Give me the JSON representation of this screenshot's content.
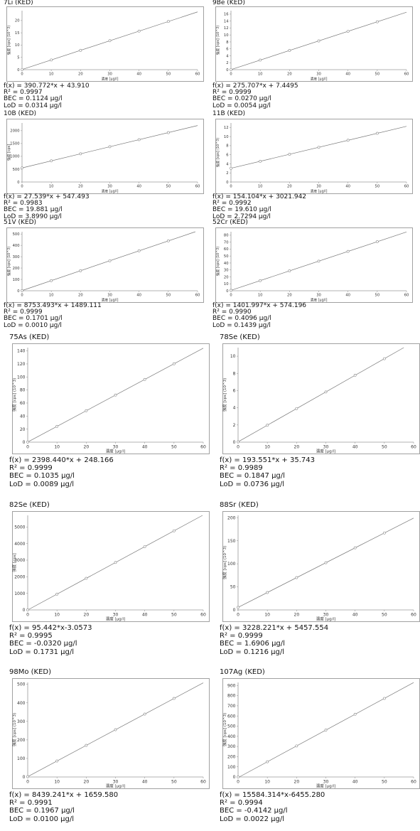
{
  "units": {
    "x_axis": "濃度 [µg/l]",
    "y_cps": "強度 [cps]",
    "y_10e3": "強度 [cps] (10^3)"
  },
  "chart_data": [
    {
      "title": "7Li (KED)",
      "type": "scatter",
      "ylabel": "強度 [cps] (10^3)",
      "xlabel": "濃度 [µg/l]",
      "xlim": [
        0,
        60
      ],
      "xticks": [
        0,
        10,
        20,
        30,
        40,
        50,
        60
      ],
      "ylim": [
        0,
        24
      ],
      "yticks": [
        0,
        5,
        10,
        15,
        20
      ],
      "x": [
        0,
        10,
        20,
        30,
        40,
        50
      ],
      "y": [
        0.04,
        3.95,
        7.86,
        11.77,
        15.68,
        19.58
      ],
      "fit": {
        "slope": 0.390772,
        "intercept": 0.04391
      },
      "stats": [
        "f(x) = 390.772*x + 43.910",
        "R² = 0.9997",
        "BEC = 0.1124 µg/l",
        "LoD = 0.0314 µg/l"
      ]
    },
    {
      "title": "9Be (KED)",
      "type": "scatter",
      "ylabel": "強度 [cps] (10^3)",
      "xlabel": "濃度 [µg/l]",
      "xlim": [
        0,
        60
      ],
      "xticks": [
        0,
        10,
        20,
        30,
        40,
        50,
        60
      ],
      "ylim": [
        0,
        17
      ],
      "yticks": [
        0,
        2,
        4,
        6,
        8,
        10,
        12,
        14,
        16
      ],
      "x": [
        0,
        10,
        20,
        30,
        40,
        50
      ],
      "y": [
        0.007,
        2.76,
        5.52,
        8.28,
        11.04,
        13.79
      ],
      "fit": {
        "slope": 0.275707,
        "intercept": 0.0074495
      },
      "stats": [
        "f(x) = 275.707*x + 7.4495",
        "R² = 0.9999",
        "BEC = 0.0270 µg/l",
        "LoD = 0.0054 µg/l"
      ]
    },
    {
      "title": "10B (KED)",
      "type": "scatter",
      "ylabel": "強度 [cps]",
      "xlabel": "濃度 [µg/l]",
      "xlim": [
        0,
        60
      ],
      "xticks": [
        0,
        10,
        20,
        30,
        40,
        50,
        60
      ],
      "ylim": [
        0,
        2300
      ],
      "yticks": [
        0,
        500,
        1000,
        1500,
        2000
      ],
      "x": [
        0,
        10,
        20,
        30,
        40,
        50
      ],
      "y": [
        547,
        823,
        1098,
        1374,
        1649,
        1924
      ],
      "fit": {
        "slope": 27.539,
        "intercept": 547.493
      },
      "stats": [
        "f(x) = 27.539*x + 547.493",
        "R² = 0.9983",
        "BEC = 19.881 µg/l",
        "LoD = 3.8990 µg/l"
      ]
    },
    {
      "title": "11B (KED)",
      "type": "scatter",
      "ylabel": "強度 [cps] (10^3)",
      "xlabel": "濃度 [µg/l]",
      "xlim": [
        0,
        60
      ],
      "xticks": [
        0,
        10,
        20,
        30,
        40,
        50,
        60
      ],
      "ylim": [
        0,
        13
      ],
      "yticks": [
        0,
        2,
        4,
        6,
        8,
        10,
        12
      ],
      "x": [
        0,
        10,
        20,
        30,
        40,
        50
      ],
      "y": [
        3.02,
        4.56,
        6.1,
        7.64,
        9.19,
        10.73
      ],
      "fit": {
        "slope": 0.154104,
        "intercept": 3.021942
      },
      "stats": [
        "f(x) = 154.104*x + 3021.942",
        "R² = 0.9992",
        "BEC = 19.610 µg/l",
        "LoD = 2.7294 µg/l"
      ]
    },
    {
      "title": "51V (KED)",
      "type": "scatter",
      "ylabel": "強度 [cps] (10^3)",
      "xlabel": "濃度 [µg/l]",
      "xlim": [
        0,
        60
      ],
      "xticks": [
        0,
        10,
        20,
        30,
        40,
        50,
        60
      ],
      "ylim": [
        0,
        520
      ],
      "yticks": [
        0,
        100,
        200,
        300,
        400,
        500
      ],
      "x": [
        0,
        10,
        20,
        30,
        40,
        50
      ],
      "y": [
        1.5,
        89.0,
        176.6,
        264.1,
        351.6,
        439.2
      ],
      "fit": {
        "slope": 8.753493,
        "intercept": 1.489111
      },
      "stats": [
        "f(x) = 8753.493*x + 1489.111",
        "R² = 0.9999",
        "BEC = 0.1701 µg/l",
        "LoD = 0.0010 µg/l"
      ]
    },
    {
      "title": "52Cr (KED)",
      "type": "scatter",
      "ylabel": "強度 [cps] (10^3)",
      "xlabel": "濃度 [µg/l]",
      "xlim": [
        0,
        60
      ],
      "xticks": [
        0,
        10,
        20,
        30,
        40,
        50,
        60
      ],
      "ylim": [
        0,
        85
      ],
      "yticks": [
        0,
        10,
        20,
        30,
        40,
        50,
        60,
        70,
        80
      ],
      "x": [
        0,
        10,
        20,
        30,
        40,
        50
      ],
      "y": [
        0.57,
        14.59,
        28.61,
        42.63,
        56.65,
        70.67
      ],
      "fit": {
        "slope": 1.401997,
        "intercept": 0.574196
      },
      "stats": [
        "f(x) = 1401.997*x + 574.196",
        "R² = 0.9990",
        "BEC = 0.4096 µg/l",
        "LoD = 0.1439 µg/l"
      ]
    },
    {
      "title": "75As (KED)",
      "type": "scatter",
      "ylabel": "強度 [cps] (10^3)",
      "xlabel": "濃度 [µg/l]",
      "xlim": [
        0,
        60
      ],
      "xticks": [
        0,
        10,
        20,
        30,
        40,
        50,
        60
      ],
      "ylim": [
        0,
        145
      ],
      "yticks": [
        0,
        20,
        40,
        60,
        80,
        100,
        120,
        140
      ],
      "x": [
        0,
        10,
        20,
        30,
        40,
        50
      ],
      "y": [
        0.25,
        24.2,
        48.2,
        72.2,
        96.2,
        120.2
      ],
      "fit": {
        "slope": 2.39844,
        "intercept": 0.248166
      },
      "stats": [
        "f(x) = 2398.440*x + 248.166",
        "R² = 0.9999",
        "BEC = 0.1035 µg/l",
        "LoD = 0.0089 µg/l"
      ]
    },
    {
      "title": "78Se (KED)",
      "type": "scatter",
      "ylabel": "強度 [cps] (10^3)",
      "xlabel": "濃度 [µg/l]",
      "xlim": [
        0,
        60
      ],
      "xticks": [
        0,
        10,
        20,
        30,
        40,
        50,
        60
      ],
      "ylim": [
        0,
        11
      ],
      "yticks": [
        0,
        2,
        4,
        6,
        8,
        10
      ],
      "x": [
        0,
        10,
        20,
        30,
        40,
        50
      ],
      "y": [
        0.04,
        1.97,
        3.91,
        5.84,
        7.78,
        9.71
      ],
      "fit": {
        "slope": 0.193551,
        "intercept": 0.035743
      },
      "stats": [
        "f(x) = 193.551*x + 35.743",
        "R² = 0.9989",
        "BEC = 0.1847 µg/l",
        "LoD = 0.0736 µg/l"
      ]
    },
    {
      "title": "82Se (KED)",
      "type": "scatter",
      "ylabel": "強度 [cps]",
      "xlabel": "濃度 [µg/l]",
      "xlim": [
        0,
        60
      ],
      "xticks": [
        0,
        10,
        20,
        30,
        40,
        50,
        60
      ],
      "ylim": [
        0,
        5700
      ],
      "yticks": [
        0,
        1000,
        2000,
        3000,
        4000,
        5000
      ],
      "x": [
        0,
        10,
        20,
        30,
        40,
        50
      ],
      "y": [
        -3,
        951,
        1906,
        2860,
        3815,
        4769
      ],
      "fit": {
        "slope": 95.442,
        "intercept": -3.0573
      },
      "stats": [
        "f(x) = 95.442*x-3.0573",
        "R² = 0.9995",
        "BEC = -0.0320 µg/l",
        "LoD = 0.1731 µg/l"
      ]
    },
    {
      "title": "88Sr (KED)",
      "type": "scatter",
      "ylabel": "強度 [cps] (10^3)",
      "xlabel": "濃度 [µg/l]",
      "xlim": [
        0,
        60
      ],
      "xticks": [
        0,
        10,
        20,
        30,
        40,
        50,
        60
      ],
      "ylim": [
        0,
        205
      ],
      "yticks": [
        0,
        50,
        100,
        150,
        200
      ],
      "x": [
        0,
        10,
        20,
        30,
        40,
        50
      ],
      "y": [
        5.5,
        37.7,
        70.0,
        102.3,
        134.6,
        166.9
      ],
      "fit": {
        "slope": 3.228221,
        "intercept": 5.457554
      },
      "stats": [
        "f(x) = 3228.221*x + 5457.554",
        "R² = 0.9999",
        "BEC = 1.6906 µg/l",
        "LoD = 0.1216 µg/l"
      ]
    },
    {
      "title": "98Mo (KED)",
      "type": "scatter",
      "ylabel": "強度 [cps] (10^3)",
      "xlabel": "濃度 [µg/l]",
      "xlim": [
        0,
        60
      ],
      "xticks": [
        0,
        10,
        20,
        30,
        40,
        50,
        60
      ],
      "ylim": [
        0,
        510
      ],
      "yticks": [
        0,
        100,
        200,
        300,
        400,
        500
      ],
      "x": [
        0,
        10,
        20,
        30,
        40,
        50
      ],
      "y": [
        1.7,
        86.1,
        170.4,
        254.8,
        339.2,
        423.6
      ],
      "fit": {
        "slope": 8.439241,
        "intercept": 1.65958
      },
      "stats": [
        "f(x) = 8439.241*x + 1659.580",
        "R² = 0.9991",
        "BEC = 0.1967 µg/l",
        "LoD = 0.0100 µg/l"
      ]
    },
    {
      "title": "107Ag (KED)",
      "type": "scatter",
      "ylabel": "強度 [cps] (10^3)",
      "xlabel": "濃度 [µg/l]",
      "xlim": [
        0,
        60
      ],
      "xticks": [
        0,
        10,
        20,
        30,
        40,
        50,
        60
      ],
      "ylim": [
        0,
        930
      ],
      "yticks": [
        0,
        100,
        200,
        300,
        400,
        500,
        600,
        700,
        800,
        900
      ],
      "x": [
        0,
        10,
        20,
        30,
        40,
        50
      ],
      "y": [
        -6.5,
        149.4,
        305.2,
        461.1,
        616.9,
        772.8
      ],
      "fit": {
        "slope": 15.584314,
        "intercept": -6.45528
      },
      "stats": [
        "f(x) = 15584.314*x-6455.280",
        "R² = 0.9994",
        "BEC = -0.4142 µg/l",
        "LoD = 0.0022 µg/l"
      ]
    }
  ]
}
